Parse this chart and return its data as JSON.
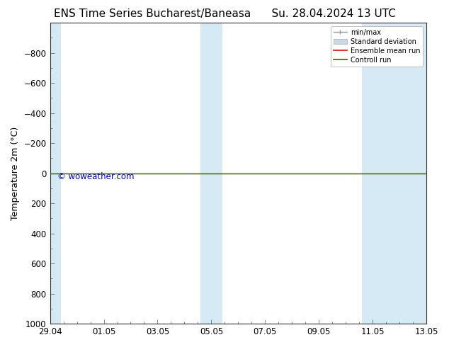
{
  "title_left": "ENS Time Series Bucharest/Baneasa",
  "title_right": "Su. 28.04.2024 13 UTC",
  "ylabel": "Temperature 2m (°C)",
  "watermark": "© woweather.com",
  "watermark_color": "#0000cc",
  "background_color": "#ffffff",
  "plot_bg_color": "#ffffff",
  "ylim_bottom": 1000,
  "ylim_top": -1000,
  "yticks": [
    -800,
    -600,
    -400,
    -200,
    0,
    200,
    400,
    600,
    800,
    1000
  ],
  "xtick_labels": [
    "29.04",
    "01.05",
    "03.05",
    "05.05",
    "07.05",
    "09.05",
    "11.05",
    "13.05"
  ],
  "x_start": 0,
  "x_end": 14,
  "xtick_positions": [
    0,
    2,
    4,
    6,
    8,
    10,
    12,
    14
  ],
  "shaded_bands": [
    {
      "x_start": 0.0,
      "x_end": 0.4
    },
    {
      "x_start": 5.6,
      "x_end": 6.4
    },
    {
      "x_start": 11.6,
      "x_end": 14.0
    }
  ],
  "shade_color": "#d6eaf5",
  "green_line_y": 0,
  "red_line_y": 0,
  "legend_labels": [
    "min/max",
    "Standard deviation",
    "Ensemble mean run",
    "Controll run"
  ],
  "legend_colors": [
    "#999999",
    "#c8d8e8",
    "#ff0000",
    "#336600"
  ],
  "title_fontsize": 11,
  "axis_fontsize": 9,
  "tick_fontsize": 8.5,
  "watermark_fontsize": 8.5
}
